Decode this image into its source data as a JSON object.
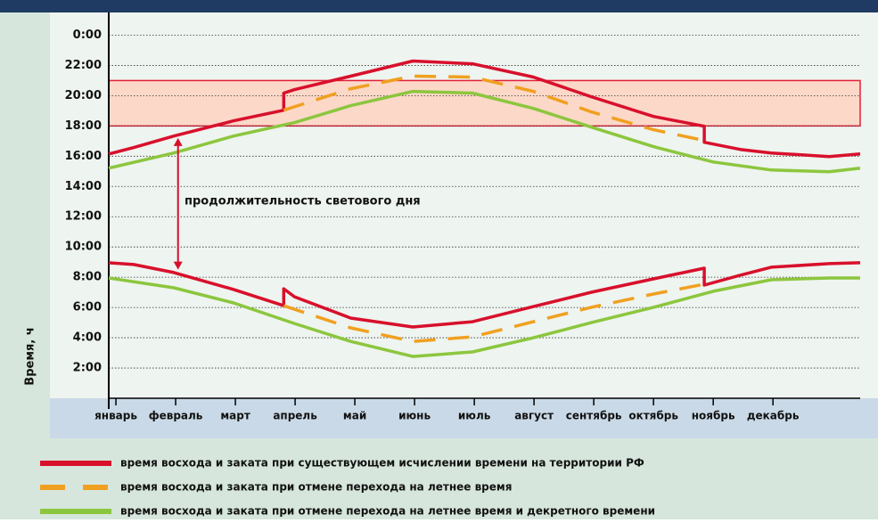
{
  "chart_data": {
    "type": "line",
    "y_label": "Время, ч",
    "categories": [
      "январь",
      "февраль",
      "март",
      "апрель",
      "май",
      "июнь",
      "июль",
      "август",
      "сентябрь",
      "октябрь",
      "ноябрь",
      "декабрь"
    ],
    "xlim": [
      -0.12,
      12.46
    ],
    "ylim": [
      0,
      25.5
    ],
    "yticks": [
      {
        "value": 2,
        "label": "2:00"
      },
      {
        "value": 4,
        "label": "4:00"
      },
      {
        "value": 6,
        "label": "6:00"
      },
      {
        "value": 8,
        "label": "8:00"
      },
      {
        "value": 10,
        "label": "10:00"
      },
      {
        "value": 12,
        "label": "12:00"
      },
      {
        "value": 14,
        "label": "14:00"
      },
      {
        "value": 16,
        "label": "16:00"
      },
      {
        "value": 18,
        "label": "18:00"
      },
      {
        "value": 20,
        "label": "20:00"
      },
      {
        "value": 22,
        "label": "22:00"
      },
      {
        "value": 24,
        "label": "0:00"
      }
    ],
    "grid": true,
    "band": {
      "range": [
        18,
        21
      ],
      "color": "#fcd8c8",
      "edge": "#e0203a"
    },
    "annotation": {
      "text": "продолжительность светового дня",
      "x": 1.04,
      "from": 17.2,
      "to": 8.5,
      "color": "#d8102c"
    },
    "series": [
      {
        "name": "время восхода и заката при существующем исчислении времени на территории РФ",
        "color": "#d8102c",
        "dashed": false,
        "sunset": {
          "x": [
            -0.12,
            0.3,
            0.97,
            1.97,
            2.81,
            2.81,
            2.99,
            3.93,
            4.97,
            5.97,
            6.99,
            7.96,
            9.0,
            9.85,
            9.85,
            10.45,
            10.97,
            11.94,
            12.46
          ],
          "values": [
            16.15,
            16.57,
            17.33,
            18.34,
            19.04,
            20.17,
            20.4,
            21.29,
            22.29,
            22.11,
            21.23,
            19.93,
            18.63,
            17.98,
            16.92,
            16.45,
            16.21,
            15.98,
            16.15
          ]
        },
        "sunrise": {
          "x": [
            -0.12,
            0.3,
            0.97,
            1.97,
            2.81,
            2.81,
            2.99,
            3.93,
            4.97,
            5.97,
            6.99,
            7.96,
            9.0,
            9.85,
            9.85,
            10.45,
            10.97,
            11.94,
            12.46
          ],
          "values": [
            8.96,
            8.84,
            8.31,
            7.19,
            6.12,
            7.24,
            6.71,
            5.3,
            4.71,
            5.06,
            6.06,
            7.01,
            7.89,
            8.6,
            7.48,
            8.13,
            8.66,
            8.9,
            8.96
          ]
        }
      },
      {
        "name": "время восхода и заката при отмене перехода на летнее время",
        "color": "#f0a020",
        "dashed": true,
        "sunset": {
          "x": [
            2.81,
            3.93,
            4.97,
            5.97,
            6.99,
            7.96,
            9.0,
            9.85
          ],
          "values": [
            19.04,
            20.46,
            21.29,
            21.23,
            20.28,
            18.93,
            17.75,
            17.04
          ]
        },
        "sunrise": {
          "x": [
            2.81,
            3.93,
            4.97,
            5.97,
            6.99,
            7.96,
            9.0,
            9.85
          ],
          "values": [
            6.12,
            4.65,
            3.76,
            4.06,
            5.06,
            6.01,
            6.89,
            7.54
          ]
        }
      },
      {
        "name": "время восхода и заката при отмене перехода на летнее время и декретного времени",
        "color": "#8cc63e",
        "dashed": false,
        "sunset": {
          "x": [
            -0.12,
            0.97,
            1.97,
            2.99,
            3.93,
            4.97,
            5.97,
            6.99,
            7.96,
            9.0,
            10.0,
            10.97,
            11.94,
            12.46
          ],
          "values": [
            15.21,
            16.21,
            17.33,
            18.22,
            19.34,
            20.28,
            20.17,
            19.16,
            17.92,
            16.63,
            15.62,
            15.09,
            14.97,
            15.21
          ]
        },
        "sunrise": {
          "x": [
            -0.12,
            0.97,
            1.97,
            2.99,
            3.93,
            4.97,
            5.97,
            6.99,
            7.96,
            9.0,
            10.0,
            10.97,
            11.94,
            12.46
          ],
          "values": [
            7.95,
            7.3,
            6.3,
            4.94,
            3.76,
            2.76,
            3.06,
            4.0,
            5.0,
            6.01,
            7.07,
            7.83,
            7.95,
            7.95
          ]
        }
      }
    ]
  }
}
